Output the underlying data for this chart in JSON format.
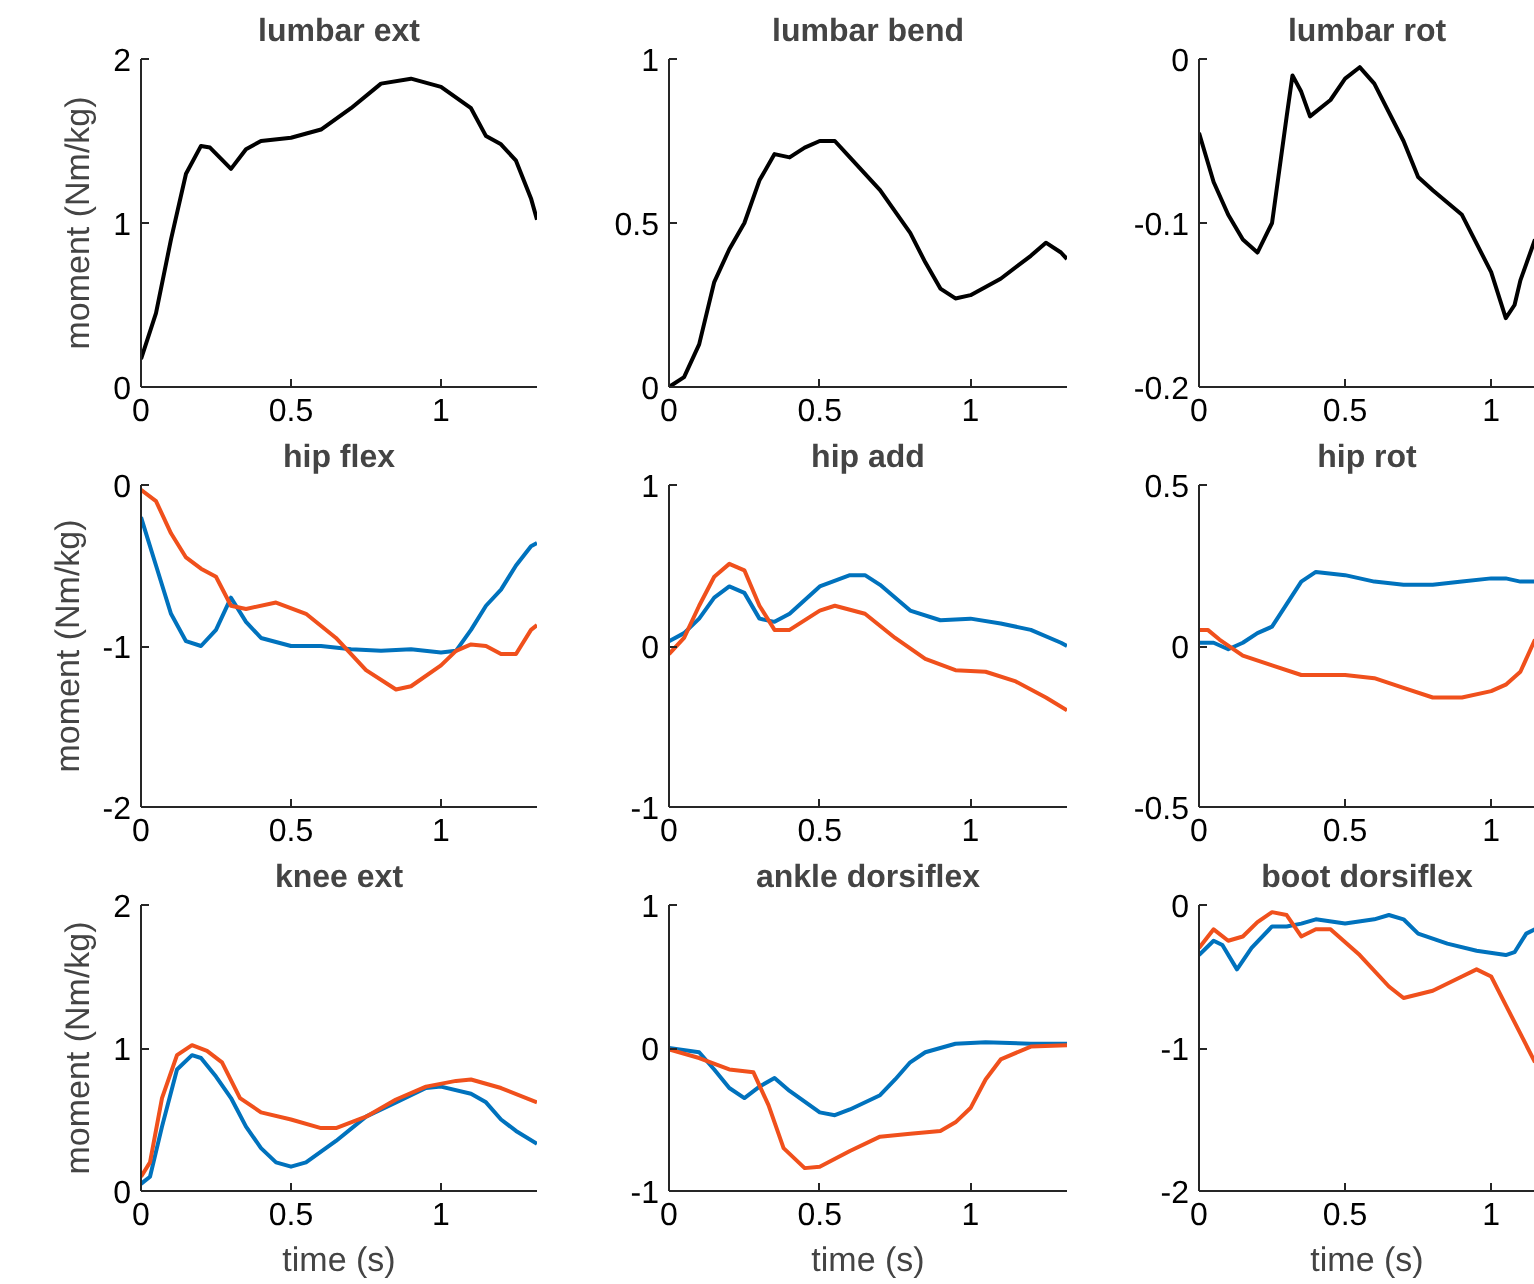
{
  "chart_data": [
    {
      "type": "line",
      "title": "lumbar ext",
      "ylabel": "moment (Nm/kg)",
      "xlim": [
        0,
        1.32
      ],
      "xticks": [
        0,
        0.5,
        1
      ],
      "ylim": [
        0,
        2
      ],
      "yticks": [
        0,
        1,
        2
      ],
      "grid": false,
      "series": [
        {
          "color": "#000000",
          "x": [
            0,
            0.05,
            0.1,
            0.15,
            0.2,
            0.23,
            0.3,
            0.35,
            0.4,
            0.5,
            0.6,
            0.7,
            0.8,
            0.9,
            1.0,
            1.1,
            1.15,
            1.2,
            1.25,
            1.3,
            1.32
          ],
          "values": [
            0.17,
            0.45,
            0.9,
            1.3,
            1.47,
            1.46,
            1.33,
            1.45,
            1.5,
            1.52,
            1.57,
            1.7,
            1.85,
            1.88,
            1.83,
            1.7,
            1.53,
            1.48,
            1.38,
            1.15,
            1.02
          ]
        }
      ]
    },
    {
      "type": "line",
      "title": "lumbar bend",
      "xlim": [
        0,
        1.32
      ],
      "xticks": [
        0,
        0.5,
        1
      ],
      "ylim": [
        0,
        1
      ],
      "yticks": [
        0,
        0.5,
        1
      ],
      "grid": false,
      "series": [
        {
          "color": "#000000",
          "x": [
            0,
            0.05,
            0.1,
            0.15,
            0.2,
            0.25,
            0.3,
            0.35,
            0.4,
            0.45,
            0.5,
            0.55,
            0.6,
            0.7,
            0.8,
            0.85,
            0.9,
            0.95,
            1.0,
            1.1,
            1.2,
            1.25,
            1.3,
            1.32
          ],
          "values": [
            0,
            0.03,
            0.13,
            0.32,
            0.42,
            0.5,
            0.63,
            0.71,
            0.7,
            0.73,
            0.75,
            0.75,
            0.7,
            0.6,
            0.47,
            0.38,
            0.3,
            0.27,
            0.28,
            0.33,
            0.4,
            0.44,
            0.41,
            0.39
          ]
        }
      ]
    },
    {
      "type": "line",
      "title": "lumbar rot",
      "xlim": [
        0,
        1.15
      ],
      "xticks": [
        0,
        0.5,
        1
      ],
      "ylim": [
        -0.2,
        0
      ],
      "yticks": [
        -0.2,
        -0.1,
        0
      ],
      "grid": false,
      "series": [
        {
          "color": "#000000",
          "x": [
            0,
            0.05,
            0.1,
            0.15,
            0.2,
            0.25,
            0.3,
            0.32,
            0.35,
            0.38,
            0.45,
            0.5,
            0.55,
            0.6,
            0.7,
            0.75,
            0.8,
            0.9,
            1.0,
            1.05,
            1.08,
            1.1,
            1.15
          ],
          "values": [
            -0.045,
            -0.075,
            -0.095,
            -0.11,
            -0.118,
            -0.1,
            -0.035,
            -0.01,
            -0.02,
            -0.035,
            -0.025,
            -0.012,
            -0.005,
            -0.015,
            -0.05,
            -0.072,
            -0.08,
            -0.095,
            -0.13,
            -0.158,
            -0.15,
            -0.135,
            -0.11
          ]
        }
      ]
    },
    {
      "type": "line",
      "title": "hip flex",
      "ylabel": "moment (Nm/kg)",
      "xlim": [
        0,
        1.32
      ],
      "xticks": [
        0,
        0.5,
        1
      ],
      "ylim": [
        -2,
        0
      ],
      "yticks": [
        -2,
        -1,
        0
      ],
      "grid": false,
      "series": [
        {
          "color": "#0072bd",
          "x": [
            0,
            0.05,
            0.1,
            0.15,
            0.2,
            0.25,
            0.3,
            0.35,
            0.4,
            0.5,
            0.6,
            0.7,
            0.8,
            0.9,
            1.0,
            1.05,
            1.1,
            1.15,
            1.2,
            1.25,
            1.3,
            1.32
          ],
          "values": [
            -0.2,
            -0.5,
            -0.8,
            -0.97,
            -1.0,
            -0.9,
            -0.7,
            -0.85,
            -0.95,
            -1.0,
            -1.0,
            -1.02,
            -1.03,
            -1.02,
            -1.04,
            -1.03,
            -0.9,
            -0.75,
            -0.65,
            -0.5,
            -0.38,
            -0.36
          ]
        },
        {
          "color": "#f0501c",
          "x": [
            0,
            0.05,
            0.1,
            0.15,
            0.2,
            0.25,
            0.3,
            0.35,
            0.45,
            0.55,
            0.65,
            0.75,
            0.85,
            0.9,
            1.0,
            1.05,
            1.1,
            1.15,
            1.2,
            1.25,
            1.3,
            1.32
          ],
          "values": [
            -0.03,
            -0.1,
            -0.3,
            -0.45,
            -0.52,
            -0.57,
            -0.75,
            -0.77,
            -0.73,
            -0.8,
            -0.95,
            -1.15,
            -1.27,
            -1.25,
            -1.12,
            -1.03,
            -0.99,
            -1.0,
            -1.05,
            -1.05,
            -0.9,
            -0.87
          ]
        }
      ]
    },
    {
      "type": "line",
      "title": "hip add",
      "xlim": [
        0,
        1.32
      ],
      "xticks": [
        0,
        0.5,
        1
      ],
      "ylim": [
        -1,
        1
      ],
      "yticks": [
        -1,
        0,
        1
      ],
      "grid": false,
      "series": [
        {
          "color": "#0072bd",
          "x": [
            0,
            0.05,
            0.1,
            0.15,
            0.2,
            0.25,
            0.3,
            0.35,
            0.4,
            0.5,
            0.6,
            0.65,
            0.7,
            0.8,
            0.9,
            1.0,
            1.1,
            1.2,
            1.3,
            1.32
          ],
          "values": [
            0.03,
            0.08,
            0.17,
            0.3,
            0.37,
            0.33,
            0.17,
            0.15,
            0.2,
            0.37,
            0.44,
            0.44,
            0.38,
            0.22,
            0.16,
            0.17,
            0.14,
            0.1,
            0.02,
            0.0
          ]
        },
        {
          "color": "#f0501c",
          "x": [
            0,
            0.05,
            0.1,
            0.15,
            0.2,
            0.25,
            0.3,
            0.35,
            0.4,
            0.5,
            0.55,
            0.65,
            0.75,
            0.85,
            0.95,
            1.05,
            1.15,
            1.25,
            1.32
          ],
          "values": [
            -0.05,
            0.05,
            0.25,
            0.43,
            0.51,
            0.47,
            0.25,
            0.1,
            0.1,
            0.22,
            0.25,
            0.2,
            0.05,
            -0.08,
            -0.15,
            -0.16,
            -0.22,
            -0.32,
            -0.4
          ]
        }
      ]
    },
    {
      "type": "line",
      "title": "hip rot",
      "xlim": [
        0,
        1.15
      ],
      "xticks": [
        0,
        0.5,
        1
      ],
      "ylim": [
        -0.5,
        0.5
      ],
      "yticks": [
        -0.5,
        0,
        0.5
      ],
      "grid": false,
      "series": [
        {
          "color": "#0072bd",
          "x": [
            0,
            0.05,
            0.1,
            0.15,
            0.2,
            0.25,
            0.3,
            0.35,
            0.4,
            0.5,
            0.6,
            0.7,
            0.8,
            0.9,
            1.0,
            1.05,
            1.1,
            1.15
          ],
          "values": [
            0.01,
            0.01,
            -0.01,
            0.01,
            0.04,
            0.06,
            0.13,
            0.2,
            0.23,
            0.22,
            0.2,
            0.19,
            0.19,
            0.2,
            0.21,
            0.21,
            0.2,
            0.2
          ]
        },
        {
          "color": "#f0501c",
          "x": [
            0,
            0.03,
            0.07,
            0.15,
            0.25,
            0.35,
            0.5,
            0.6,
            0.7,
            0.8,
            0.9,
            1.0,
            1.05,
            1.1,
            1.15
          ],
          "values": [
            0.05,
            0.05,
            0.02,
            -0.03,
            -0.06,
            -0.09,
            -0.09,
            -0.1,
            -0.13,
            -0.16,
            -0.16,
            -0.14,
            -0.12,
            -0.08,
            0.02
          ]
        }
      ]
    },
    {
      "type": "line",
      "title": "knee ext",
      "ylabel": "moment (Nm/kg)",
      "xlabel": "time (s)",
      "xlim": [
        0,
        1.32
      ],
      "xticks": [
        0,
        0.5,
        1
      ],
      "ylim": [
        0,
        2
      ],
      "yticks": [
        0,
        1,
        2
      ],
      "grid": false,
      "series": [
        {
          "color": "#0072bd",
          "x": [
            0,
            0.03,
            0.07,
            0.12,
            0.17,
            0.2,
            0.25,
            0.3,
            0.35,
            0.4,
            0.45,
            0.5,
            0.55,
            0.65,
            0.75,
            0.85,
            0.95,
            1.0,
            1.1,
            1.15,
            1.2,
            1.25,
            1.32
          ],
          "values": [
            0.05,
            0.1,
            0.45,
            0.85,
            0.95,
            0.93,
            0.8,
            0.65,
            0.45,
            0.3,
            0.2,
            0.17,
            0.2,
            0.35,
            0.52,
            0.62,
            0.72,
            0.73,
            0.68,
            0.62,
            0.5,
            0.42,
            0.33
          ]
        },
        {
          "color": "#f0501c",
          "x": [
            0,
            0.03,
            0.07,
            0.12,
            0.17,
            0.22,
            0.27,
            0.33,
            0.4,
            0.5,
            0.6,
            0.65,
            0.75,
            0.85,
            0.95,
            1.05,
            1.1,
            1.2,
            1.32
          ],
          "values": [
            0.1,
            0.2,
            0.65,
            0.95,
            1.02,
            0.98,
            0.9,
            0.65,
            0.55,
            0.5,
            0.44,
            0.44,
            0.52,
            0.64,
            0.73,
            0.77,
            0.78,
            0.72,
            0.62
          ]
        }
      ]
    },
    {
      "type": "line",
      "title": "ankle dorsiflex",
      "xlabel": "time (s)",
      "xlim": [
        0,
        1.32
      ],
      "xticks": [
        0,
        0.5,
        1
      ],
      "ylim": [
        -1,
        1
      ],
      "yticks": [
        -1,
        0,
        1
      ],
      "grid": false,
      "series": [
        {
          "color": "#0072bd",
          "x": [
            0,
            0.1,
            0.15,
            0.2,
            0.25,
            0.3,
            0.35,
            0.4,
            0.5,
            0.55,
            0.6,
            0.7,
            0.75,
            0.8,
            0.85,
            0.95,
            1.05,
            1.2,
            1.32
          ],
          "values": [
            0,
            -0.03,
            -0.15,
            -0.28,
            -0.35,
            -0.27,
            -0.21,
            -0.3,
            -0.45,
            -0.47,
            -0.43,
            -0.33,
            -0.22,
            -0.1,
            -0.03,
            0.03,
            0.04,
            0.03,
            0.03
          ]
        },
        {
          "color": "#f0501c",
          "x": [
            0,
            0.1,
            0.2,
            0.28,
            0.33,
            0.38,
            0.45,
            0.5,
            0.6,
            0.7,
            0.8,
            0.9,
            0.95,
            1.0,
            1.05,
            1.1,
            1.2,
            1.32
          ],
          "values": [
            -0.01,
            -0.07,
            -0.15,
            -0.17,
            -0.4,
            -0.7,
            -0.84,
            -0.83,
            -0.72,
            -0.62,
            -0.6,
            -0.58,
            -0.52,
            -0.42,
            -0.22,
            -0.08,
            0.01,
            0.02
          ]
        }
      ]
    },
    {
      "type": "line",
      "title": "boot dorsiflex",
      "xlabel": "time (s)",
      "xlim": [
        0,
        1.15
      ],
      "xticks": [
        0,
        0.5,
        1
      ],
      "ylim": [
        -2,
        0
      ],
      "yticks": [
        -2,
        -1,
        0
      ],
      "grid": false,
      "series": [
        {
          "color": "#0072bd",
          "x": [
            0,
            0.05,
            0.08,
            0.13,
            0.18,
            0.25,
            0.3,
            0.35,
            0.4,
            0.5,
            0.6,
            0.65,
            0.7,
            0.75,
            0.85,
            0.95,
            1.05,
            1.08,
            1.12,
            1.15
          ],
          "values": [
            -0.35,
            -0.25,
            -0.28,
            -0.45,
            -0.3,
            -0.15,
            -0.15,
            -0.13,
            -0.1,
            -0.13,
            -0.1,
            -0.07,
            -0.1,
            -0.2,
            -0.27,
            -0.32,
            -0.35,
            -0.33,
            -0.2,
            -0.17
          ]
        },
        {
          "color": "#f0501c",
          "x": [
            0,
            0.05,
            0.1,
            0.15,
            0.2,
            0.25,
            0.3,
            0.35,
            0.4,
            0.45,
            0.55,
            0.65,
            0.7,
            0.8,
            0.9,
            0.95,
            1.0,
            1.05,
            1.1,
            1.15
          ],
          "values": [
            -0.3,
            -0.17,
            -0.25,
            -0.22,
            -0.12,
            -0.05,
            -0.07,
            -0.22,
            -0.17,
            -0.17,
            -0.35,
            -0.57,
            -0.65,
            -0.6,
            -0.5,
            -0.45,
            -0.5,
            -0.7,
            -0.9,
            -1.1
          ]
        }
      ]
    }
  ]
}
